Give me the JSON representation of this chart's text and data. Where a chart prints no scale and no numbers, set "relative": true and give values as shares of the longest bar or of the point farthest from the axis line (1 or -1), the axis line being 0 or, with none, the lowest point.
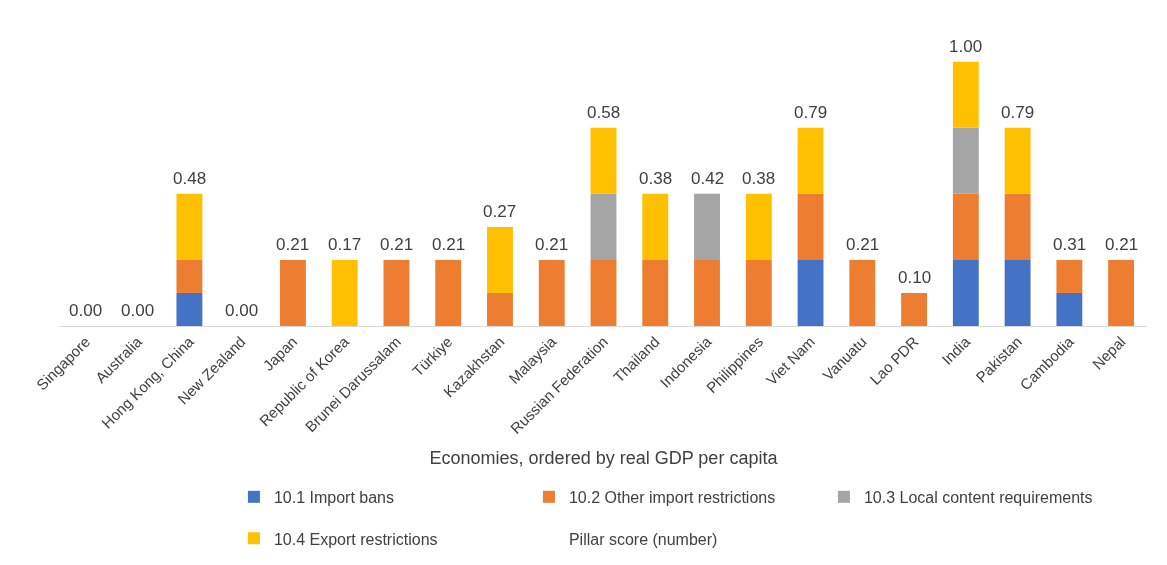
{
  "chart_data": {
    "type": "bar",
    "stacked": true,
    "relative": true,
    "xlabel": "Economies, ordered by real GDP per capita",
    "legend": "bottom",
    "categories": [
      "Singapore",
      "Australia",
      "Hong Kong, China",
      "New Zealand",
      "Japan",
      "Republic of Korea",
      "Brunei Darussalam",
      "Türkiye",
      "Kazakhstan",
      "Malaysia",
      "Russian Federation",
      "Thailand",
      "Indonesia",
      "Philippines",
      "Viet Nam",
      "Vanuatu",
      "Lao PDR",
      "India",
      "Pakistan",
      "Cambodia",
      "Nepal"
    ],
    "series": [
      {
        "name": "10.1 Import bans",
        "color": "#4472c4",
        "values": [
          0,
          0,
          0.125,
          0,
          0,
          0,
          0,
          0,
          0,
          0,
          0,
          0,
          0,
          0,
          0.25,
          0,
          0,
          0.25,
          0.25,
          0.125,
          0
        ]
      },
      {
        "name": "10.2 Other import restrictions",
        "color": "#ed7d31",
        "values": [
          0,
          0,
          0.125,
          0,
          0.25,
          0,
          0.25,
          0.25,
          0.125,
          0.25,
          0.25,
          0.25,
          0.25,
          0.25,
          0.25,
          0.25,
          0.125,
          0.25,
          0.25,
          0.125,
          0.25
        ]
      },
      {
        "name": "10.3 Local content requirements",
        "color": "#a5a5a5",
        "values": [
          0,
          0,
          0,
          0,
          0,
          0,
          0,
          0,
          0,
          0,
          0.25,
          0,
          0.25,
          0,
          0,
          0,
          0,
          0.25,
          0,
          0,
          0
        ]
      },
      {
        "name": "10.4 Export restrictions",
        "color": "#ffc000",
        "values": [
          0,
          0,
          0.25,
          0,
          0,
          0.25,
          0,
          0,
          0.25,
          0,
          0.25,
          0.25,
          0,
          0.25,
          0.25,
          0,
          0,
          0.25,
          0.25,
          0,
          0
        ]
      },
      {
        "name": "Pillar score (number)",
        "values": [
          null,
          null,
          null,
          null,
          null,
          null,
          null,
          null,
          null,
          null,
          null,
          null,
          null,
          null,
          null,
          null,
          null,
          null,
          null,
          null,
          null
        ]
      }
    ],
    "annotations": [
      {
        "text": "0.00",
        "x": "Singapore",
        "y": 0
      },
      {
        "text": "0.00",
        "x": "Australia",
        "y": 0
      },
      {
        "text": "0.48",
        "x": "Hong Kong, China",
        "y": 0.5
      },
      {
        "text": "0.00",
        "x": "New Zealand",
        "y": 0
      },
      {
        "text": "0.21",
        "x": "Japan",
        "y": 0.25
      },
      {
        "text": "0.17",
        "x": "Republic of Korea",
        "y": 0.25
      },
      {
        "text": "0.21",
        "x": "Brunei Darussalam",
        "y": 0.25
      },
      {
        "text": "0.21",
        "x": "Türkiye",
        "y": 0.25
      },
      {
        "text": "0.27",
        "x": "Kazakhstan",
        "y": 0.375
      },
      {
        "text": "0.21",
        "x": "Malaysia",
        "y": 0.25
      },
      {
        "text": "0.58",
        "x": "Russian Federation",
        "y": 0.75
      },
      {
        "text": "0.38",
        "x": "Thailand",
        "y": 0.5
      },
      {
        "text": "0.42",
        "x": "Indonesia",
        "y": 0.5
      },
      {
        "text": "0.38",
        "x": "Philippines",
        "y": 0.5
      },
      {
        "text": "0.79",
        "x": "Viet Nam",
        "y": 0.75
      },
      {
        "text": "0.21",
        "x": "Vanuatu",
        "y": 0.25
      },
      {
        "text": "0.10",
        "x": "Lao PDR",
        "y": 0.125
      },
      {
        "text": "1.00",
        "x": "India",
        "y": 1
      },
      {
        "text": "0.79",
        "x": "Pakistan",
        "y": 0.75
      },
      {
        "text": "0.31",
        "x": "Cambodia",
        "y": 0.25
      },
      {
        "text": "0.21",
        "x": "Nepal",
        "y": 0.25
      }
    ]
  }
}
